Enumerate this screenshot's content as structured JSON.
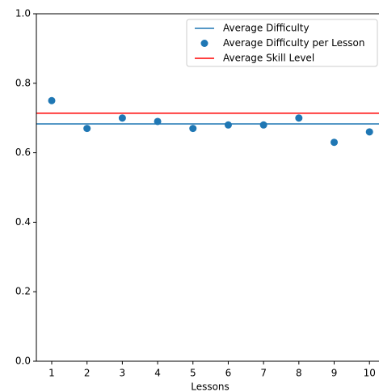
{
  "chart_data": {
    "type": "scatter",
    "xlabel": "Lessons",
    "x": [
      1,
      2,
      3,
      4,
      5,
      6,
      7,
      8,
      9,
      10
    ],
    "series": [
      {
        "name": "Average Difficulty",
        "kind": "hline",
        "color": "#1f77b4",
        "value": 0.683
      },
      {
        "name": "Average Difficulty per Lesson",
        "kind": "scatter",
        "color": "#1f77b4",
        "values": [
          0.75,
          0.67,
          0.7,
          0.69,
          0.67,
          0.68,
          0.68,
          0.7,
          0.63,
          0.66
        ]
      },
      {
        "name": "Average Skill Level",
        "kind": "hline",
        "color": "#ff0000",
        "value": 0.714
      }
    ],
    "xlim": [
      0.565,
      10.27
    ],
    "xticks": [
      1,
      2,
      3,
      4,
      5,
      6,
      7,
      8,
      9,
      10
    ],
    "ylim": [
      0,
      1
    ],
    "yticks": [
      {
        "value": 0,
        "label": "0.0"
      },
      {
        "value": 0.2,
        "label": "0.2"
      },
      {
        "value": 0.4,
        "label": "0.4"
      },
      {
        "value": 0.6,
        "label": "0.6"
      },
      {
        "value": 0.8,
        "label": "0.8"
      },
      {
        "value": 1,
        "label": "1.0"
      }
    ],
    "legend": "upper right"
  }
}
